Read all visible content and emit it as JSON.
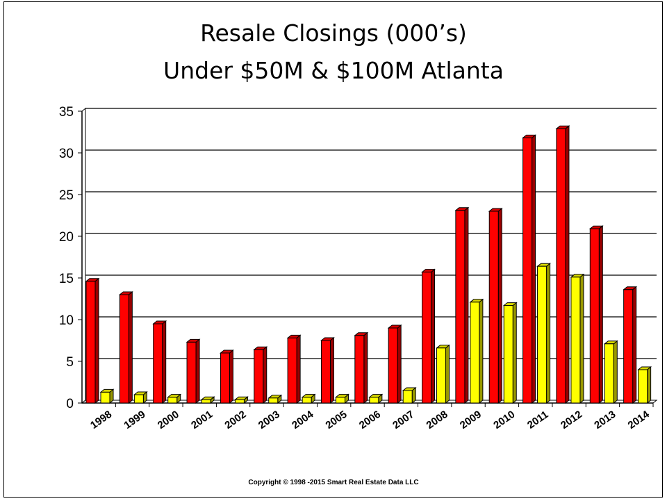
{
  "title_line1": "Resale Closings (000’s)",
  "title_line2": "Under $50M & $100M Atlanta",
  "copyright": "Copyright © 1998 -2015 Smart Real Estate Data LLC",
  "colors": {
    "series1": "#ff0000",
    "series2": "#ffff00",
    "axis": "#000000"
  },
  "chart_data": {
    "type": "bar",
    "title": "Resale Closings (000’s) Under $50M & $100M Atlanta",
    "xlabel": "",
    "ylabel": "",
    "ylim": [
      0,
      35
    ],
    "yticks": [
      0,
      5,
      10,
      15,
      20,
      25,
      30,
      35
    ],
    "grid": true,
    "legend": "none",
    "categories": [
      "1998",
      "1999",
      "2000",
      "2001",
      "2002",
      "2003",
      "2004",
      "2005",
      "2006",
      "2007",
      "2008",
      "2009",
      "2010",
      "2011",
      "2012",
      "2013",
      "2014"
    ],
    "series": [
      {
        "color": "#ff0000",
        "values": [
          14.6,
          13.0,
          9.5,
          7.3,
          6.0,
          6.4,
          7.8,
          7.5,
          8.1,
          9.0,
          15.7,
          23.1,
          23.0,
          31.8,
          32.9,
          20.9,
          13.6
        ]
      },
      {
        "color": "#ffff00",
        "values": [
          1.3,
          1.0,
          0.7,
          0.4,
          0.4,
          0.6,
          0.7,
          0.7,
          0.7,
          1.5,
          6.6,
          12.1,
          11.7,
          16.4,
          15.1,
          7.1,
          4.0
        ]
      }
    ]
  }
}
